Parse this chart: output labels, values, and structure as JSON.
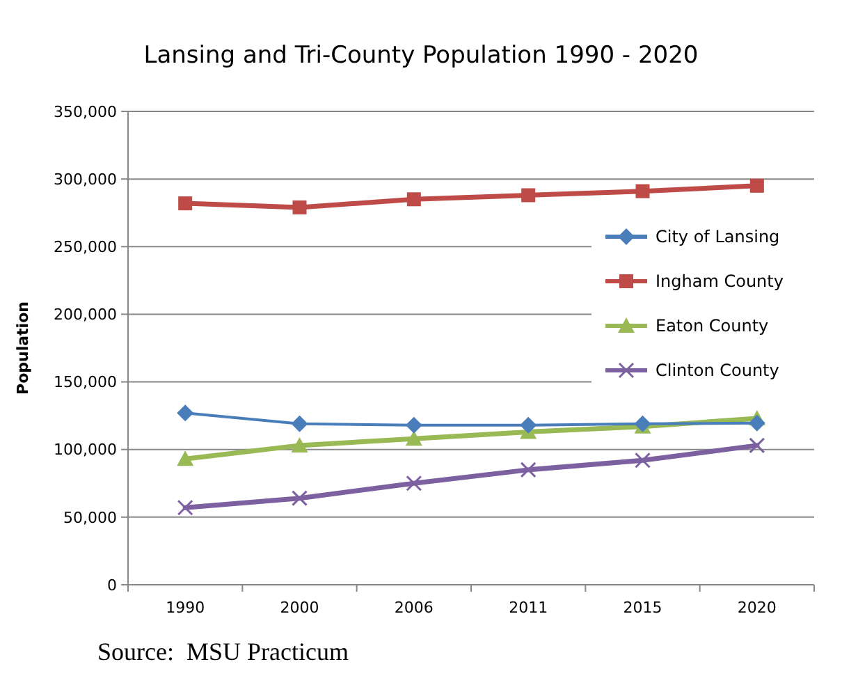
{
  "chart_data": {
    "type": "line",
    "title": "Lansing and Tri-County Population 1990 - 2020",
    "ylabel": "Population",
    "categories": [
      "1990",
      "2000",
      "2006",
      "2011",
      "2015",
      "2020"
    ],
    "series": [
      {
        "name": "City of Lansing",
        "color": "#4a7ebb",
        "marker": "diamond",
        "values": [
          127000,
          119000,
          118000,
          118000,
          119000,
          119500
        ]
      },
      {
        "name": "Ingham County",
        "color": "#be4b48",
        "marker": "square",
        "values": [
          282000,
          279000,
          285000,
          288000,
          291000,
          295000
        ]
      },
      {
        "name": "Eaton County",
        "color": "#98b954",
        "marker": "triangle",
        "values": [
          93000,
          103000,
          108000,
          113000,
          117000,
          123000
        ]
      },
      {
        "name": "Clinton County",
        "color": "#7d60a0",
        "marker": "cross",
        "values": [
          57000,
          64000,
          75000,
          85000,
          92000,
          103000
        ]
      }
    ],
    "ylim": [
      0,
      350000
    ],
    "yticks": [
      {
        "value": 0,
        "label": "0"
      },
      {
        "value": 50000,
        "label": "50,000"
      },
      {
        "value": 100000,
        "label": "100,000"
      },
      {
        "value": 150000,
        "label": "150,000"
      },
      {
        "value": 200000,
        "label": "200,000"
      },
      {
        "value": 250000,
        "label": "250,000"
      },
      {
        "value": 300000,
        "label": "300,000"
      },
      {
        "value": 350000,
        "label": "350,000"
      }
    ],
    "grid": "y",
    "legend": "right",
    "annotations": [
      "Source:  MSU Practicum"
    ]
  }
}
